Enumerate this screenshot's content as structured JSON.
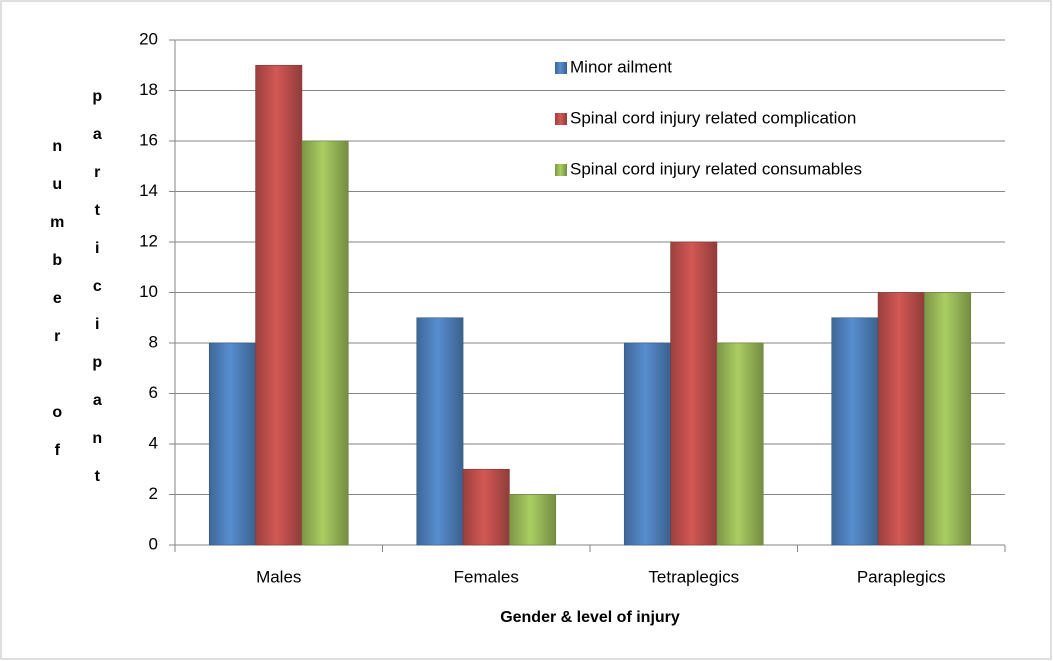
{
  "chart_data": {
    "type": "bar",
    "x_label": "Gender & level of injury",
    "y_label_lines": [
      "number of",
      "participant"
    ],
    "categories": [
      "Males",
      "Females",
      "Tetraplegics",
      "Paraplegics"
    ],
    "series": [
      {
        "name": "Minor ailment",
        "color": "#4f81bd",
        "values": [
          8,
          9,
          8,
          9
        ]
      },
      {
        "name": "Spinal cord injury related complication",
        "color": "#c0504d",
        "values": [
          19,
          3,
          12,
          10
        ]
      },
      {
        "name": "Spinal cord injury related consumables",
        "color": "#9bbb59",
        "values": [
          16,
          2,
          8,
          10
        ]
      }
    ],
    "ylim": [
      0,
      20
    ],
    "yticks": [
      0,
      2,
      4,
      6,
      8,
      10,
      12,
      14,
      16,
      18,
      20
    ],
    "grid": true,
    "legend": "upper right"
  }
}
